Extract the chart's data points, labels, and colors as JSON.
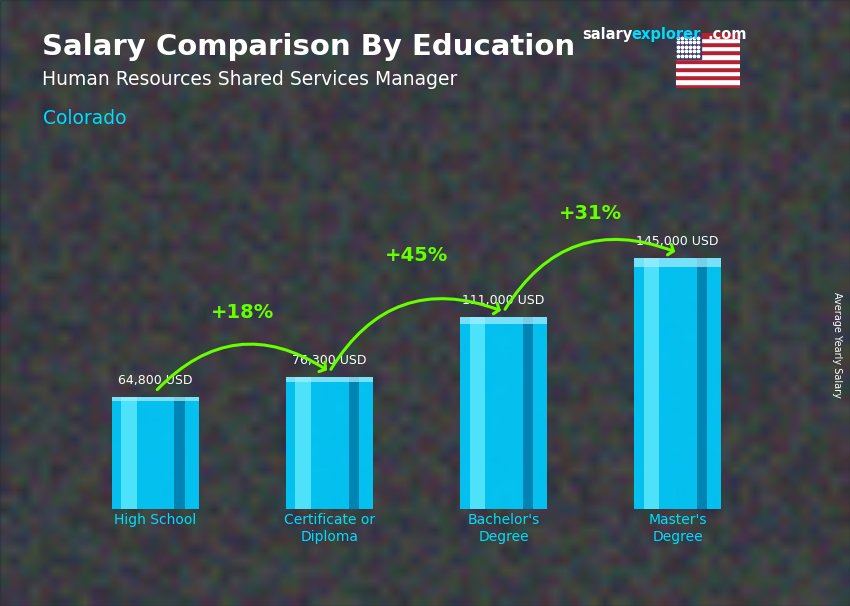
{
  "title_line1": "Salary Comparison By Education",
  "title_line2": "Human Resources Shared Services Manager",
  "title_line3": "Colorado",
  "ylabel": "Average Yearly Salary",
  "categories": [
    "High School",
    "Certificate or\nDiploma",
    "Bachelor's\nDegree",
    "Master's\nDegree"
  ],
  "values": [
    64800,
    76300,
    111000,
    145000
  ],
  "value_labels": [
    "64,800 USD",
    "76,300 USD",
    "111,000 USD",
    "145,000 USD"
  ],
  "pct_labels": [
    "+18%",
    "+45%",
    "+31%"
  ],
  "bar_color_main": "#00ccff",
  "bar_color_light": "#66eeff",
  "bar_color_dark": "#0099cc",
  "bar_color_side": "#007aaa",
  "bg_color": "#555555",
  "overlay_color": "#2a3a4a",
  "text_color": "#ffffff",
  "cyan_label_color": "#00ddff",
  "green_arrow_color": "#66ff00",
  "location_color": "#00ddff",
  "watermark_salary_color": "#ffffff",
  "watermark_explorer_color": "#00ddff",
  "ylim": [
    0,
    175000
  ],
  "bar_width": 0.5,
  "bar_positions": [
    0,
    1,
    2,
    3
  ]
}
